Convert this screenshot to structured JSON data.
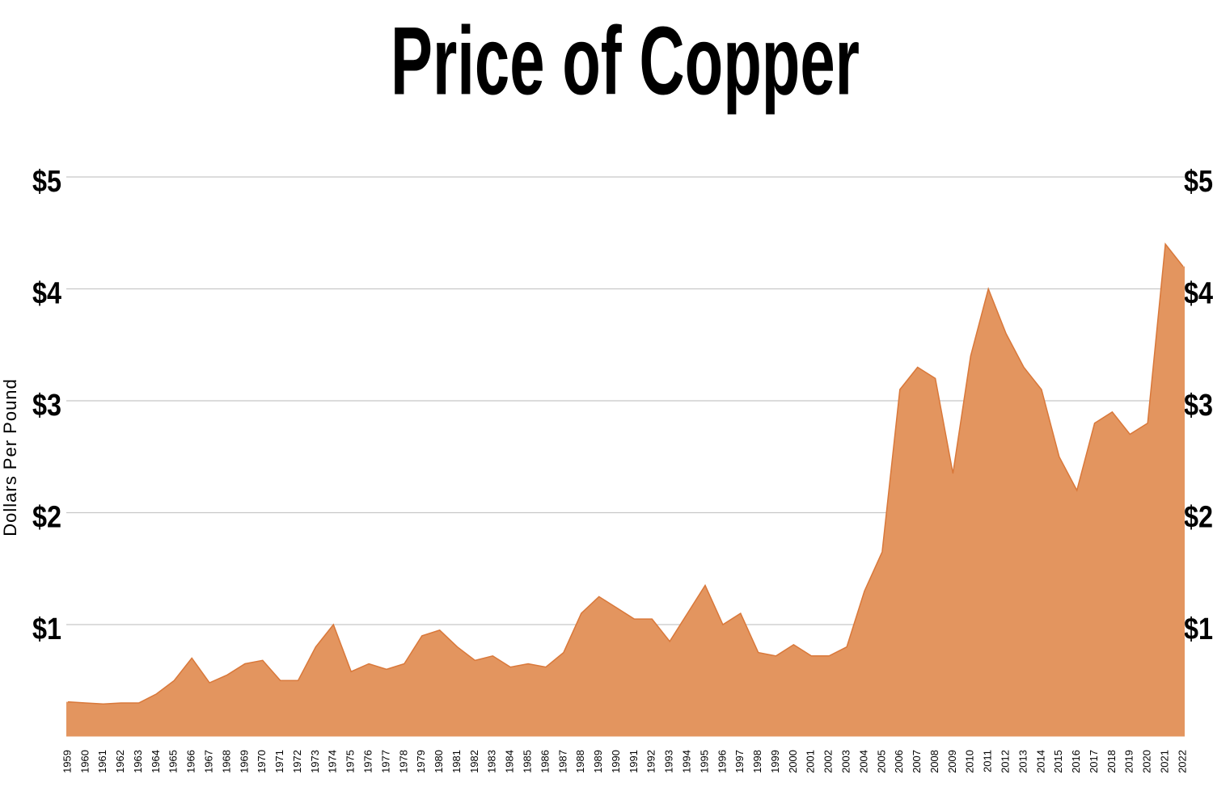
{
  "chart_data": {
    "type": "area",
    "title": "Price of Copper",
    "y_label": "Dollars Per Pound",
    "categories": [
      "1959",
      "1960",
      "1961",
      "1962",
      "1963",
      "1964",
      "1965",
      "1966",
      "1967",
      "1968",
      "1969",
      "1970",
      "1971",
      "1972",
      "1973",
      "1974",
      "1975",
      "1976",
      "1977",
      "1978",
      "1979",
      "1980",
      "1981",
      "1982",
      "1983",
      "1984",
      "1985",
      "1986",
      "1987",
      "1988",
      "1989",
      "1990",
      "1991",
      "1992",
      "1993",
      "1994",
      "1995",
      "1996",
      "1997",
      "1998",
      "1999",
      "2000",
      "2001",
      "2002",
      "2003",
      "2004",
      "2005",
      "2006",
      "2007",
      "2008",
      "2009",
      "2010",
      "2011",
      "2012",
      "2013",
      "2014",
      "2015",
      "2016",
      "2017",
      "2018",
      "2019",
      "2020",
      "2021",
      "2022"
    ],
    "values": [
      0.31,
      0.3,
      0.29,
      0.3,
      0.3,
      0.38,
      0.5,
      0.7,
      0.48,
      0.55,
      0.65,
      0.68,
      0.5,
      0.5,
      0.8,
      1.0,
      0.58,
      0.65,
      0.6,
      0.65,
      0.9,
      0.95,
      0.8,
      0.68,
      0.72,
      0.62,
      0.65,
      0.62,
      0.75,
      1.1,
      1.25,
      1.15,
      1.05,
      1.05,
      0.85,
      1.1,
      1.35,
      1.0,
      1.1,
      0.75,
      0.72,
      0.82,
      0.72,
      0.72,
      0.8,
      1.3,
      1.65,
      3.1,
      3.3,
      3.2,
      2.35,
      3.4,
      4.0,
      3.6,
      3.3,
      3.1,
      2.5,
      2.2,
      2.8,
      2.9,
      2.7,
      2.8,
      4.4,
      4.2
    ],
    "color": "#e3955f",
    "line_color": "#d9783a",
    "ylim": [
      0,
      5
    ],
    "yticks": [
      {
        "value": 1,
        "label": "$1"
      },
      {
        "value": 2,
        "label": "$2"
      },
      {
        "value": 3,
        "label": "$3"
      },
      {
        "value": 4,
        "label": "$4"
      },
      {
        "value": 5,
        "label": "$5"
      }
    ],
    "grid": true
  }
}
